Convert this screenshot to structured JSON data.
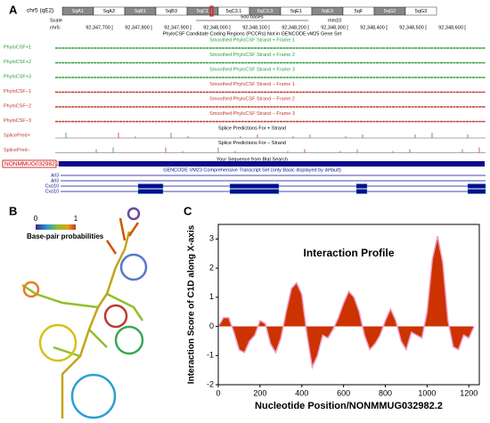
{
  "panels": {
    "a": "A",
    "b": "B",
    "c": "C"
  },
  "browser": {
    "chromosome": "chr5 (qE2)",
    "bands": [
      "5qA1",
      "5qA3",
      "5qB1",
      "5qB3",
      "5qC1",
      "5qC3.1",
      "5qC3.3",
      "5qE1",
      "5qE3",
      "5qF",
      "5qG2",
      "5qG3"
    ],
    "scale_label": "Scale",
    "scale_bar": "500 bases",
    "assembly": "mm10",
    "chrom_label": "chr5:",
    "coordinates": [
      "92,347,700",
      "92,347,800",
      "92,347,900",
      "92,348,000",
      "92,348,100",
      "92,348,200",
      "92,348,300",
      "92,348,400",
      "92,348,500",
      "92,348,600"
    ],
    "pccr_caption": "PhyloCSF Candidate Coding Regions (PCCRs) Not in GENCODE vM25 Gene Set",
    "tracks": [
      {
        "label": "PhyloCSF+1",
        "caption": "Smoothed PhyloCSF Strand + Frame 1"
      },
      {
        "label": "PhyloCSF+2",
        "caption": "Smoothed PhyloCSF Strand + Frame 2"
      },
      {
        "label": "PhyloCSF+3",
        "caption": "Smoothed PhyloCSF Strand + Frame 3"
      },
      {
        "label": "PhyloCSF−1",
        "caption": "Smoothed PhyloCSF Strand − Frame 1"
      },
      {
        "label": "PhyloCSF−2",
        "caption": "Smoothed PhyloCSF Strand − Frame 2"
      },
      {
        "label": "PhyloCSF−3",
        "caption": "Smoothed PhyloCSF Strand − Frame 3"
      },
      {
        "label": "SplicePred+",
        "caption": "Splice Predictions For + Strand"
      },
      {
        "label": "SplicePred−",
        "caption": "Splice Predictions For − Strand"
      }
    ],
    "blat_caption": "Your Sequence from Blat Search",
    "blat_label": "NONMMUG032982.2",
    "gencode_caption": "GENCODE VM23 Comprehensive Transcript Set (only Basic displayed by default)",
    "transcripts": [
      "Arl3",
      "Arl3",
      "Cxcl10",
      "Cxcl10"
    ]
  },
  "structure": {
    "legend_title": "Base-pair probabilities",
    "legend_min": 0,
    "legend_max": 1
  },
  "chart_data": {
    "type": "area",
    "title": "Interaction Profile",
    "xlabel": "Nucleotide Position/NONMMUG032982.2",
    "ylabel": "Interaction Score of C1D along X-axis",
    "x": [
      0,
      25,
      50,
      75,
      100,
      125,
      150,
      175,
      200,
      225,
      250,
      275,
      300,
      325,
      350,
      375,
      400,
      425,
      450,
      475,
      500,
      525,
      550,
      575,
      600,
      625,
      650,
      675,
      700,
      725,
      750,
      775,
      800,
      825,
      850,
      875,
      900,
      925,
      950,
      975,
      1000,
      1025,
      1050,
      1075,
      1100,
      1125,
      1150,
      1175,
      1200,
      1225
    ],
    "values": [
      0,
      0.3,
      0.3,
      -0.2,
      -0.8,
      -0.9,
      -0.5,
      -0.3,
      0.2,
      0.1,
      -0.6,
      -0.9,
      -0.4,
      0.5,
      1.3,
      1.5,
      1.1,
      -0.3,
      -1.4,
      -1.0,
      -0.3,
      -0.4,
      -0.1,
      0.3,
      0.8,
      1.2,
      1.0,
      0.5,
      -0.3,
      -0.8,
      -0.6,
      -0.3,
      0.2,
      0.6,
      0.2,
      -0.5,
      -0.8,
      -0.2,
      -0.3,
      -0.4,
      0.5,
      2.3,
      3.1,
      2.2,
      0.2,
      -0.7,
      -0.8,
      -0.3,
      -0.4,
      0.0
    ],
    "color": "#cc3300",
    "line_color": "#f2a0c8",
    "xlim": [
      0,
      1250
    ],
    "xticks": [
      0,
      200,
      400,
      600,
      800,
      1000,
      1200
    ],
    "ylim": [
      -2,
      3.5
    ],
    "yticks": [
      -2,
      -1,
      0,
      1,
      2,
      3
    ]
  }
}
